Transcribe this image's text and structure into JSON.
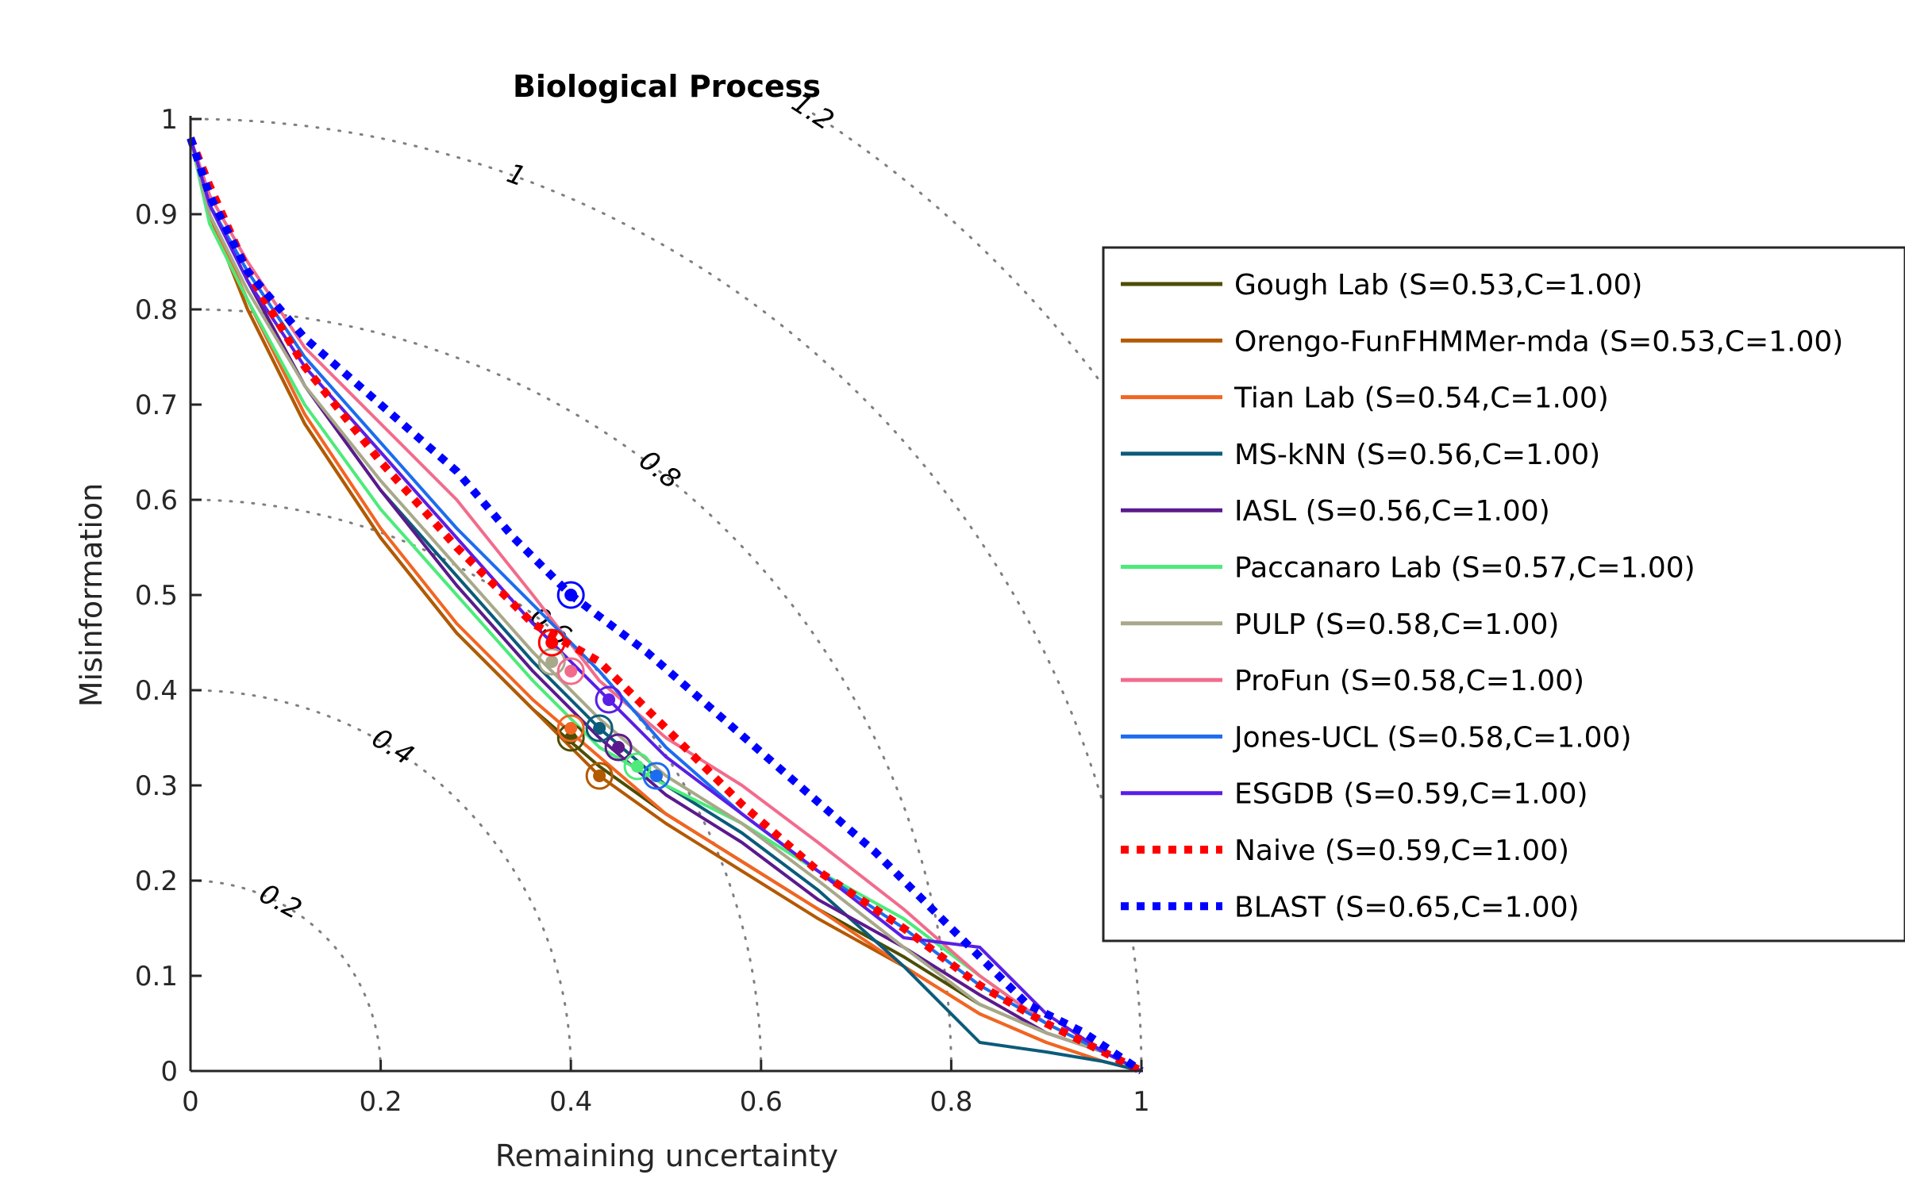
{
  "chart_data": {
    "type": "line",
    "title": "Biological Process",
    "xlabel": "Remaining uncertainty",
    "ylabel": "Misinformation",
    "xlim": [
      0,
      1
    ],
    "ylim": [
      0,
      1
    ],
    "xticks": [
      "0",
      "0.2",
      "0.4",
      "0.6",
      "0.8",
      "1"
    ],
    "yticks": [
      "0",
      "0.1",
      "0.2",
      "0.3",
      "0.4",
      "0.5",
      "0.6",
      "0.7",
      "0.8",
      "0.9",
      "1"
    ],
    "grid": false,
    "legend_position": "right",
    "contours": [
      {
        "r": 0.2,
        "label": "0.2"
      },
      {
        "r": 0.4,
        "label": "0.4"
      },
      {
        "r": 0.6,
        "label": "0.6"
      },
      {
        "r": 0.8,
        "label": "0.8"
      },
      {
        "r": 1.0,
        "label": "1"
      },
      {
        "r": 1.2,
        "label": "1.2"
      }
    ],
    "series": [
      {
        "name": "Gough Lab (S=0.53,C=1.00)",
        "color": "#4d4d00",
        "dash": "solid",
        "x": [
          0.0,
          0.02,
          0.06,
          0.12,
          0.2,
          0.28,
          0.36,
          0.43,
          0.5,
          0.58,
          0.66,
          0.75,
          0.83,
          0.9,
          0.96,
          1.0
        ],
        "y": [
          0.98,
          0.9,
          0.8,
          0.68,
          0.56,
          0.46,
          0.38,
          0.32,
          0.27,
          0.22,
          0.17,
          0.12,
          0.07,
          0.04,
          0.02,
          0.0
        ],
        "marker": {
          "x": 0.4,
          "y": 0.35
        }
      },
      {
        "name": "Orengo-FunFHMMer-mda (S=0.53,C=1.00)",
        "color": "#b35900",
        "dash": "solid",
        "x": [
          0.0,
          0.02,
          0.06,
          0.12,
          0.2,
          0.28,
          0.36,
          0.43,
          0.5,
          0.58,
          0.66,
          0.75,
          0.83,
          0.9,
          0.96,
          1.0
        ],
        "y": [
          0.98,
          0.9,
          0.8,
          0.68,
          0.56,
          0.46,
          0.38,
          0.31,
          0.26,
          0.21,
          0.16,
          0.11,
          0.06,
          0.03,
          0.01,
          0.0
        ],
        "marker": {
          "x": 0.43,
          "y": 0.31
        }
      },
      {
        "name": "Tian Lab (S=0.54,C=1.00)",
        "color": "#f26522",
        "dash": "solid",
        "x": [
          0.0,
          0.02,
          0.06,
          0.12,
          0.2,
          0.28,
          0.36,
          0.43,
          0.5,
          0.58,
          0.66,
          0.75,
          0.83,
          0.9,
          0.96,
          1.0
        ],
        "y": [
          0.98,
          0.9,
          0.81,
          0.69,
          0.57,
          0.47,
          0.39,
          0.33,
          0.27,
          0.22,
          0.17,
          0.11,
          0.06,
          0.03,
          0.01,
          0.0
        ],
        "marker": {
          "x": 0.4,
          "y": 0.36
        }
      },
      {
        "name": "MS-kNN (S=0.56,C=1.00)",
        "color": "#0b5b7a",
        "dash": "solid",
        "x": [
          0.0,
          0.02,
          0.06,
          0.12,
          0.2,
          0.28,
          0.36,
          0.43,
          0.5,
          0.58,
          0.66,
          0.75,
          0.83,
          0.9,
          0.96,
          1.0
        ],
        "y": [
          0.98,
          0.91,
          0.83,
          0.72,
          0.61,
          0.52,
          0.43,
          0.36,
          0.3,
          0.25,
          0.19,
          0.11,
          0.03,
          0.02,
          0.01,
          0.0
        ],
        "marker": {
          "x": 0.43,
          "y": 0.36
        }
      },
      {
        "name": "IASL (S=0.56,C=1.00)",
        "color": "#5b1a8c",
        "dash": "solid",
        "x": [
          0.0,
          0.02,
          0.06,
          0.12,
          0.2,
          0.28,
          0.36,
          0.43,
          0.5,
          0.58,
          0.66,
          0.75,
          0.83,
          0.9,
          0.96,
          1.0
        ],
        "y": [
          0.98,
          0.91,
          0.83,
          0.72,
          0.61,
          0.51,
          0.42,
          0.35,
          0.29,
          0.24,
          0.18,
          0.13,
          0.08,
          0.04,
          0.02,
          0.0
        ],
        "marker": {
          "x": 0.45,
          "y": 0.34
        }
      },
      {
        "name": "Paccanaro Lab (S=0.57,C=1.00)",
        "color": "#4ceb7a",
        "dash": "solid",
        "x": [
          0.0,
          0.02,
          0.06,
          0.12,
          0.2,
          0.28,
          0.36,
          0.43,
          0.5,
          0.58,
          0.66,
          0.75,
          0.83,
          0.9,
          0.96,
          1.0
        ],
        "y": [
          0.98,
          0.89,
          0.81,
          0.7,
          0.59,
          0.5,
          0.41,
          0.34,
          0.3,
          0.26,
          0.21,
          0.16,
          0.1,
          0.05,
          0.02,
          0.0
        ],
        "marker": {
          "x": 0.47,
          "y": 0.32
        }
      },
      {
        "name": "PULP (S=0.58,C=1.00)",
        "color": "#a8a88a",
        "dash": "solid",
        "x": [
          0.0,
          0.02,
          0.06,
          0.12,
          0.2,
          0.28,
          0.36,
          0.43,
          0.5,
          0.58,
          0.66,
          0.75,
          0.83,
          0.9,
          0.96,
          1.0
        ],
        "y": [
          0.98,
          0.9,
          0.82,
          0.72,
          0.62,
          0.53,
          0.44,
          0.37,
          0.31,
          0.26,
          0.2,
          0.13,
          0.07,
          0.04,
          0.02,
          0.0
        ],
        "marker": {
          "x": 0.38,
          "y": 0.43
        }
      },
      {
        "name": "ProFun (S=0.58,C=1.00)",
        "color": "#f26b8c",
        "dash": "solid",
        "x": [
          0.0,
          0.02,
          0.06,
          0.12,
          0.2,
          0.28,
          0.36,
          0.43,
          0.5,
          0.58,
          0.66,
          0.75,
          0.83,
          0.9,
          0.96,
          1.0
        ],
        "y": [
          0.98,
          0.92,
          0.85,
          0.76,
          0.68,
          0.6,
          0.5,
          0.41,
          0.35,
          0.3,
          0.24,
          0.17,
          0.1,
          0.05,
          0.02,
          0.0
        ],
        "marker": {
          "x": 0.4,
          "y": 0.42
        }
      },
      {
        "name": "Jones-UCL (S=0.58,C=1.00)",
        "color": "#1c6cf0",
        "dash": "solid",
        "x": [
          0.0,
          0.02,
          0.06,
          0.12,
          0.2,
          0.28,
          0.36,
          0.43,
          0.5,
          0.58,
          0.66,
          0.75,
          0.83,
          0.9,
          0.96,
          1.0
        ],
        "y": [
          0.98,
          0.91,
          0.84,
          0.75,
          0.66,
          0.57,
          0.49,
          0.42,
          0.34,
          0.27,
          0.21,
          0.15,
          0.09,
          0.05,
          0.02,
          0.0
        ],
        "marker": {
          "x": 0.49,
          "y": 0.31
        }
      },
      {
        "name": "ESGDB (S=0.59,C=1.00)",
        "color": "#5a1ee6",
        "dash": "solid",
        "x": [
          0.0,
          0.02,
          0.06,
          0.12,
          0.2,
          0.28,
          0.36,
          0.43,
          0.5,
          0.58,
          0.66,
          0.75,
          0.83,
          0.9,
          0.96,
          1.0
        ],
        "y": [
          0.98,
          0.91,
          0.83,
          0.74,
          0.65,
          0.56,
          0.47,
          0.4,
          0.33,
          0.27,
          0.21,
          0.14,
          0.13,
          0.06,
          0.02,
          0.0
        ],
        "marker": {
          "x": 0.44,
          "y": 0.39
        }
      },
      {
        "name": "Naive (S=0.59,C=1.00)",
        "color": "#ff0000",
        "dash": "dotted",
        "x": [
          0.0,
          0.02,
          0.06,
          0.12,
          0.2,
          0.28,
          0.36,
          0.43,
          0.5,
          0.58,
          0.66,
          0.75,
          0.83,
          0.9,
          0.96,
          1.0
        ],
        "y": [
          0.98,
          0.93,
          0.84,
          0.74,
          0.64,
          0.55,
          0.47,
          0.43,
          0.36,
          0.28,
          0.21,
          0.15,
          0.09,
          0.05,
          0.02,
          0.0
        ],
        "marker": {
          "x": 0.38,
          "y": 0.45
        }
      },
      {
        "name": "BLAST (S=0.65,C=1.00)",
        "color": "#0000ff",
        "dash": "dotted",
        "x": [
          0.0,
          0.02,
          0.06,
          0.12,
          0.2,
          0.28,
          0.34,
          0.4,
          0.48,
          0.56,
          0.64,
          0.72,
          0.8,
          0.88,
          0.94,
          1.0
        ],
        "y": [
          0.98,
          0.92,
          0.84,
          0.77,
          0.7,
          0.63,
          0.56,
          0.5,
          0.44,
          0.37,
          0.3,
          0.23,
          0.15,
          0.07,
          0.04,
          0.0
        ],
        "marker": {
          "x": 0.4,
          "y": 0.5
        }
      }
    ]
  }
}
